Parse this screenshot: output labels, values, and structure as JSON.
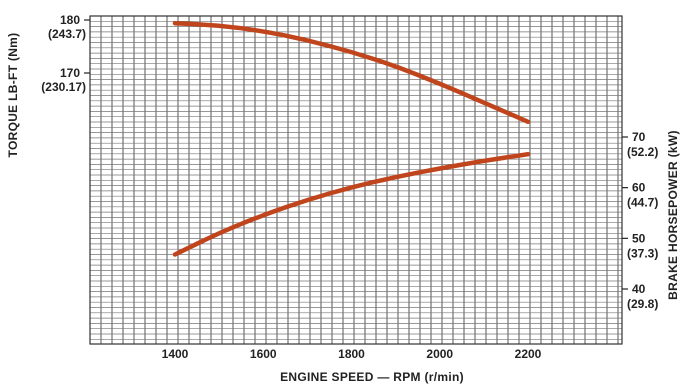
{
  "chart_data": {
    "type": "line",
    "title": "",
    "xlabel": "ENGINE SPEED — RPM (r/min)",
    "ylabel_left": "TORQUE LB-FT (Nm)",
    "ylabel_right": "BRAKE HORSEPOWER (kW)",
    "xlim": [
      1200,
      2400
    ],
    "x_ticks": [
      1400,
      1600,
      1800,
      2000,
      2200
    ],
    "left_axis": {
      "ticks": [
        {
          "value": 180,
          "label": "180",
          "sub": "(243.7)"
        },
        {
          "value": 170,
          "label": "170",
          "sub": "(230.17)"
        }
      ]
    },
    "right_axis": {
      "ticks": [
        {
          "value": 70,
          "label": "70",
          "sub": "(52.2)"
        },
        {
          "value": 60,
          "label": "60",
          "sub": "(44.7)"
        },
        {
          "value": 50,
          "label": "50",
          "sub": "(37.3)"
        },
        {
          "value": 40,
          "label": "40",
          "sub": "(29.8)"
        }
      ]
    },
    "grid": true,
    "series_color": "#c0441c",
    "series": [
      {
        "axis": "left",
        "x": [
          1400,
          1500,
          1600,
          1700,
          1800,
          1900,
          2000,
          2100,
          2200
        ],
        "values": [
          179.4,
          179.0,
          177.9,
          176.2,
          174.0,
          171.3,
          168.0,
          164.4,
          160.8
        ]
      },
      {
        "axis": "right",
        "x": [
          1400,
          1500,
          1600,
          1700,
          1800,
          1900,
          2000,
          2100,
          2200
        ],
        "values": [
          46.8,
          51.1,
          54.6,
          57.6,
          60.1,
          62.1,
          63.8,
          65.3,
          66.6
        ]
      }
    ]
  }
}
